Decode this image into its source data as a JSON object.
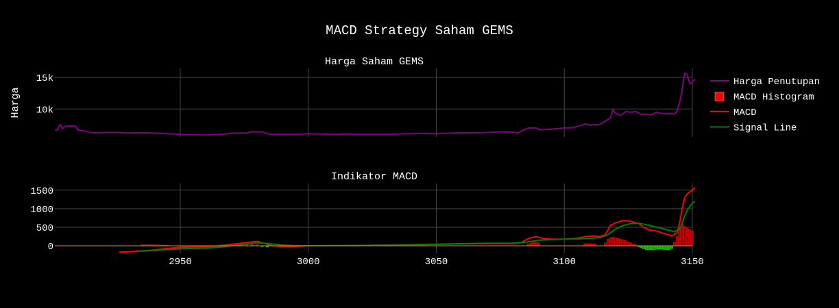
{
  "figure": {
    "title": "MACD Strategy Saham GEMS",
    "background": "#000000",
    "grid_color": "#444444"
  },
  "legend": {
    "placement": "right",
    "items": [
      {
        "label": "Harga Penutupan",
        "kind": "line",
        "color": "#800080"
      },
      {
        "label": "MACD Histogram",
        "kind": "bar",
        "color": "#ff0000"
      },
      {
        "label": "MACD",
        "kind": "line",
        "color": "#ff0000"
      },
      {
        "label": "Signal Line",
        "kind": "line",
        "color": "#008000"
      }
    ]
  },
  "chart_data": [
    {
      "type": "line",
      "title": "Harga Saham GEMS",
      "ylabel": "Harga",
      "xlim": [
        2901,
        3150
      ],
      "ylim": [
        5600,
        16400
      ],
      "x_ticks": [
        2950,
        3000,
        3050,
        3100,
        3150
      ],
      "y_ticks": [
        10000,
        15000
      ],
      "y_tick_labels": [
        "10k",
        "15k"
      ],
      "show_x_tick_labels": false,
      "grid": true,
      "series": [
        {
          "name": "Harga Penutupan",
          "color": "#800080",
          "points": [
            [
              2901,
              6750
            ],
            [
              2902,
              6700
            ],
            [
              2903,
              7600
            ],
            [
              2904,
              6900
            ],
            [
              2905,
              7300
            ],
            [
              2906,
              7300
            ],
            [
              2907,
              7350
            ],
            [
              2908,
              7300
            ],
            [
              2909,
              7350
            ],
            [
              2910,
              6700
            ],
            [
              2911,
              6600
            ],
            [
              2912,
              6600
            ],
            [
              2913,
              6500
            ],
            [
              2915,
              6300
            ],
            [
              2917,
              6250
            ],
            [
              2920,
              6300
            ],
            [
              2925,
              6300
            ],
            [
              2928,
              6250
            ],
            [
              2930,
              6200
            ],
            [
              2932,
              6250
            ],
            [
              2935,
              6250
            ],
            [
              2940,
              6200
            ],
            [
              2945,
              6100
            ],
            [
              2948,
              6050
            ],
            [
              2950,
              6000
            ],
            [
              2952,
              5950
            ],
            [
              2955,
              5950
            ],
            [
              2960,
              5900
            ],
            [
              2965,
              6000
            ],
            [
              2968,
              6050
            ],
            [
              2970,
              6200
            ],
            [
              2975,
              6200
            ],
            [
              2978,
              6400
            ],
            [
              2982,
              6400
            ],
            [
              2985,
              6000
            ],
            [
              2990,
              6000
            ],
            [
              2995,
              6000
            ],
            [
              3000,
              6100
            ],
            [
              3005,
              6050
            ],
            [
              3010,
              6000
            ],
            [
              3015,
              6050
            ],
            [
              3020,
              6000
            ],
            [
              3025,
              6000
            ],
            [
              3030,
              6000
            ],
            [
              3035,
              6050
            ],
            [
              3040,
              6100
            ],
            [
              3045,
              6150
            ],
            [
              3050,
              6100
            ],
            [
              3055,
              6200
            ],
            [
              3060,
              6250
            ],
            [
              3065,
              6250
            ],
            [
              3070,
              6300
            ],
            [
              3075,
              6400
            ],
            [
              3080,
              6350
            ],
            [
              3082,
              6200
            ],
            [
              3084,
              6700
            ],
            [
              3086,
              7000
            ],
            [
              3089,
              7000
            ],
            [
              3091,
              6700
            ],
            [
              3094,
              6800
            ],
            [
              3097,
              6900
            ],
            [
              3100,
              7000
            ],
            [
              3103,
              7050
            ],
            [
              3106,
              7350
            ],
            [
              3108,
              7650
            ],
            [
              3110,
              7500
            ],
            [
              3112,
              7500
            ],
            [
              3114,
              7600
            ],
            [
              3116,
              8100
            ],
            [
              3118,
              8600
            ],
            [
              3119,
              10000
            ],
            [
              3120,
              9300
            ],
            [
              3122,
              9000
            ],
            [
              3124,
              9600
            ],
            [
              3126,
              9500
            ],
            [
              3128,
              9600
            ],
            [
              3130,
              9200
            ],
            [
              3132,
              9200
            ],
            [
              3134,
              9100
            ],
            [
              3136,
              9500
            ],
            [
              3138,
              9300
            ],
            [
              3140,
              9300
            ],
            [
              3142,
              9300
            ],
            [
              3143,
              9200
            ],
            [
              3144,
              9700
            ],
            [
              3145,
              11000
            ],
            [
              3146,
              13000
            ],
            [
              3147,
              15700
            ],
            [
              3148,
              15400
            ],
            [
              3149,
              14000
            ],
            [
              3150,
              14200
            ],
            [
              3151,
              14700
            ]
          ]
        }
      ]
    },
    {
      "type": "line",
      "title": "Indikator MACD",
      "xlim": [
        2901,
        3150
      ],
      "ylim": [
        -200,
        1680
      ],
      "x_ticks": [
        2950,
        3000,
        3050,
        3100,
        3150
      ],
      "y_ticks": [
        0,
        500,
        1000,
        1500
      ],
      "y_tick_labels": [
        "0",
        "500",
        "1000",
        "1500"
      ],
      "grid": true,
      "series": [
        {
          "name": "MACD Histogram",
          "type": "bar",
          "color_positive": "#ff0000",
          "color_negative": "#00ff00",
          "points": [
            [
              2935,
              30
            ],
            [
              2936,
              30
            ],
            [
              2937,
              30
            ],
            [
              2938,
              30
            ],
            [
              2939,
              30
            ],
            [
              2940,
              28
            ],
            [
              2941,
              25
            ],
            [
              2942,
              22
            ],
            [
              2943,
              20
            ],
            [
              2944,
              18
            ],
            [
              2945,
              15
            ],
            [
              2968,
              20
            ],
            [
              2970,
              40
            ],
            [
              2972,
              50
            ],
            [
              2974,
              60
            ],
            [
              2976,
              50
            ],
            [
              2978,
              40
            ],
            [
              2980,
              30
            ],
            [
              2982,
              -20
            ],
            [
              2984,
              -30
            ],
            [
              3086,
              60
            ],
            [
              3087,
              80
            ],
            [
              3088,
              90
            ],
            [
              3089,
              100
            ],
            [
              3090,
              80
            ],
            [
              3108,
              60
            ],
            [
              3109,
              60
            ],
            [
              3110,
              60
            ],
            [
              3111,
              55
            ],
            [
              3112,
              50
            ],
            [
              3116,
              80
            ],
            [
              3117,
              180
            ],
            [
              3118,
              220
            ],
            [
              3119,
              240
            ],
            [
              3120,
              220
            ],
            [
              3121,
              200
            ],
            [
              3122,
              180
            ],
            [
              3123,
              160
            ],
            [
              3124,
              140
            ],
            [
              3125,
              110
            ],
            [
              3126,
              80
            ],
            [
              3127,
              50
            ],
            [
              3128,
              30
            ],
            [
              3129,
              -20
            ],
            [
              3130,
              -50
            ],
            [
              3131,
              -80
            ],
            [
              3132,
              -100
            ],
            [
              3133,
              -110
            ],
            [
              3134,
              -100
            ],
            [
              3135,
              -100
            ],
            [
              3136,
              -90
            ],
            [
              3137,
              -90
            ],
            [
              3138,
              -90
            ],
            [
              3139,
              -100
            ],
            [
              3140,
              -100
            ],
            [
              3141,
              -110
            ],
            [
              3142,
              -70
            ],
            [
              3143,
              100
            ],
            [
              3144,
              250
            ],
            [
              3145,
              450
            ],
            [
              3146,
              600
            ],
            [
              3147,
              520
            ],
            [
              3148,
              480
            ],
            [
              3149,
              440
            ],
            [
              3150,
              400
            ]
          ]
        },
        {
          "name": "MACD",
          "color": "#ff0000",
          "points": [
            [
              2926,
              -170
            ],
            [
              2930,
              -160
            ],
            [
              2935,
              -140
            ],
            [
              2940,
              -110
            ],
            [
              2945,
              -70
            ],
            [
              2950,
              -40
            ],
            [
              2955,
              -30
            ],
            [
              2960,
              -20
            ],
            [
              2965,
              0
            ],
            [
              2970,
              40
            ],
            [
              2975,
              80
            ],
            [
              2980,
              120
            ],
            [
              2983,
              60
            ],
            [
              2986,
              0
            ],
            [
              2990,
              -20
            ],
            [
              2995,
              -15
            ],
            [
              3000,
              0
            ],
            [
              3010,
              5
            ],
            [
              3020,
              10
            ],
            [
              3030,
              20
            ],
            [
              3040,
              30
            ],
            [
              3050,
              40
            ],
            [
              3060,
              50
            ],
            [
              3070,
              60
            ],
            [
              3080,
              60
            ],
            [
              3083,
              80
            ],
            [
              3086,
              200
            ],
            [
              3089,
              250
            ],
            [
              3092,
              190
            ],
            [
              3095,
              180
            ],
            [
              3100,
              180
            ],
            [
              3105,
              200
            ],
            [
              3108,
              250
            ],
            [
              3111,
              260
            ],
            [
              3114,
              250
            ],
            [
              3116,
              300
            ],
            [
              3118,
              550
            ],
            [
              3120,
              620
            ],
            [
              3123,
              680
            ],
            [
              3126,
              660
            ],
            [
              3129,
              600
            ],
            [
              3131,
              500
            ],
            [
              3133,
              430
            ],
            [
              3136,
              400
            ],
            [
              3139,
              330
            ],
            [
              3142,
              270
            ],
            [
              3144,
              350
            ],
            [
              3145,
              600
            ],
            [
              3146,
              1000
            ],
            [
              3147,
              1300
            ],
            [
              3148,
              1400
            ],
            [
              3149,
              1450
            ],
            [
              3150,
              1500
            ],
            [
              3151,
              1570
            ]
          ]
        },
        {
          "name": "Signal Line",
          "color": "#008000",
          "points": [
            [
              2934,
              -140
            ],
            [
              2940,
              -120
            ],
            [
              2945,
              -100
            ],
            [
              2950,
              -80
            ],
            [
              2955,
              -70
            ],
            [
              2960,
              -60
            ],
            [
              2965,
              -40
            ],
            [
              2970,
              0
            ],
            [
              2975,
              40
            ],
            [
              2980,
              80
            ],
            [
              2985,
              60
            ],
            [
              2990,
              20
            ],
            [
              2995,
              5
            ],
            [
              3000,
              0
            ],
            [
              3010,
              5
            ],
            [
              3020,
              10
            ],
            [
              3030,
              20
            ],
            [
              3040,
              30
            ],
            [
              3050,
              45
            ],
            [
              3060,
              60
            ],
            [
              3070,
              70
            ],
            [
              3080,
              70
            ],
            [
              3085,
              100
            ],
            [
              3090,
              150
            ],
            [
              3095,
              170
            ],
            [
              3100,
              180
            ],
            [
              3105,
              185
            ],
            [
              3110,
              200
            ],
            [
              3114,
              220
            ],
            [
              3117,
              300
            ],
            [
              3120,
              450
            ],
            [
              3123,
              550
            ],
            [
              3126,
              600
            ],
            [
              3129,
              610
            ],
            [
              3132,
              570
            ],
            [
              3135,
              520
            ],
            [
              3138,
              470
            ],
            [
              3141,
              420
            ],
            [
              3143,
              380
            ],
            [
              3145,
              450
            ],
            [
              3146,
              600
            ],
            [
              3147,
              800
            ],
            [
              3148,
              950
            ],
            [
              3149,
              1060
            ],
            [
              3150,
              1150
            ],
            [
              3151,
              1200
            ]
          ]
        }
      ]
    }
  ]
}
